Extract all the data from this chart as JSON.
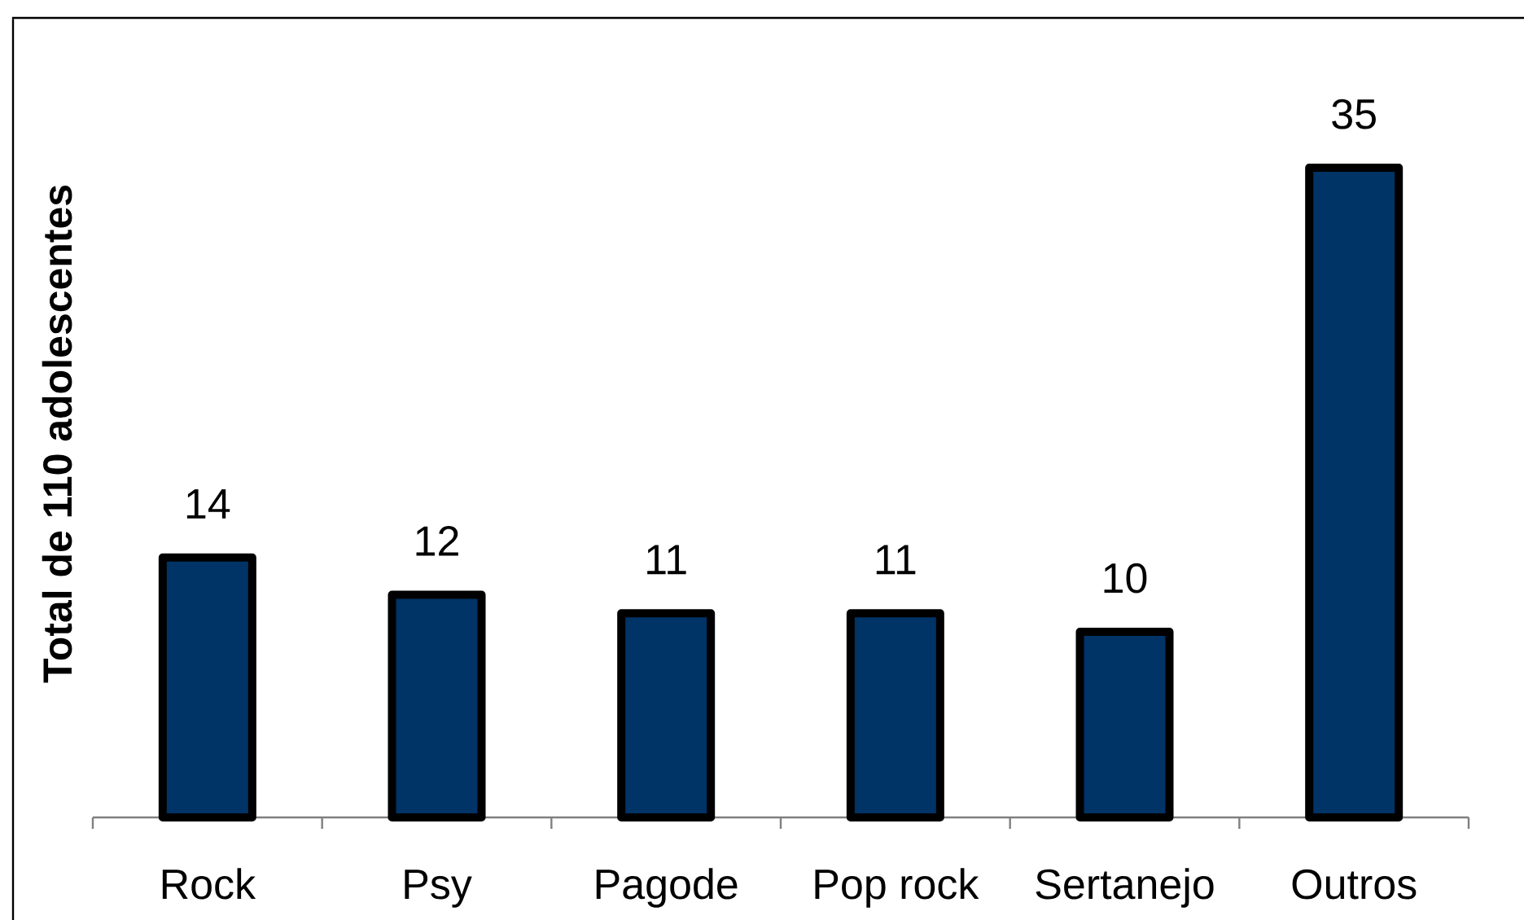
{
  "chart_data": {
    "type": "bar",
    "ylabel": "Total de 110 adolescentes",
    "categories": [
      "Rock",
      "Psy",
      "Pagode",
      "Pop rock",
      "Sertanejo",
      "Outros"
    ],
    "values": [
      14,
      12,
      11,
      11,
      10,
      35
    ],
    "color": "#003366",
    "data_labels": true,
    "tick_labels": "x"
  }
}
